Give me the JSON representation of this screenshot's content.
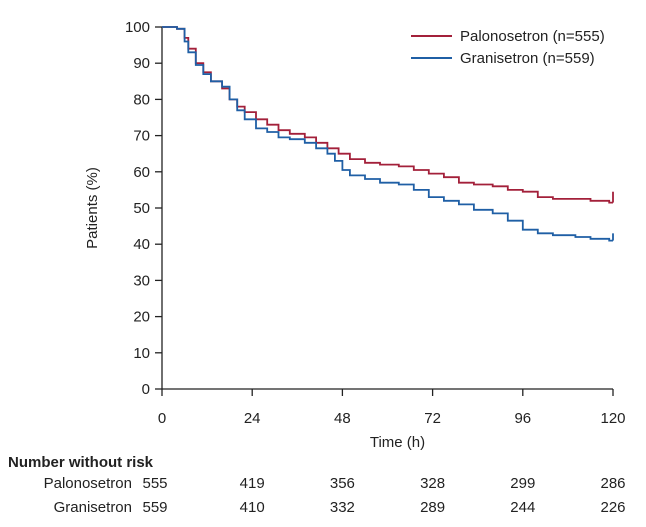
{
  "chart_data": {
    "type": "line",
    "xlabel": "Time (h)",
    "ylabel": "Patients (%)",
    "xlim": [
      0,
      120
    ],
    "ylim": [
      0,
      100
    ],
    "x_ticks": [
      0,
      24,
      48,
      72,
      96,
      120
    ],
    "y_ticks": [
      0,
      10,
      20,
      30,
      40,
      50,
      60,
      70,
      80,
      90,
      100
    ],
    "grid": false,
    "legend_position": "top-right",
    "series": [
      {
        "name": "Palonosetron (n=555)",
        "color": "#a3203a",
        "points": [
          [
            0,
            100
          ],
          [
            4,
            99.5
          ],
          [
            6,
            97
          ],
          [
            7,
            94
          ],
          [
            9,
            90
          ],
          [
            11,
            87.5
          ],
          [
            13,
            85
          ],
          [
            16,
            83
          ],
          [
            18,
            80
          ],
          [
            20,
            78
          ],
          [
            22,
            76.5
          ],
          [
            25,
            74.5
          ],
          [
            28,
            73
          ],
          [
            31,
            71.5
          ],
          [
            34,
            70.5
          ],
          [
            38,
            69.5
          ],
          [
            41,
            68
          ],
          [
            44,
            66.5
          ],
          [
            47,
            65
          ],
          [
            50,
            63.5
          ],
          [
            54,
            62.5
          ],
          [
            58,
            62
          ],
          [
            63,
            61.5
          ],
          [
            67,
            60.5
          ],
          [
            71,
            59.5
          ],
          [
            75,
            58.5
          ],
          [
            79,
            57
          ],
          [
            83,
            56.5
          ],
          [
            88,
            56
          ],
          [
            92,
            55
          ],
          [
            96,
            54.5
          ],
          [
            100,
            53
          ],
          [
            104,
            52.5
          ],
          [
            110,
            52.5
          ],
          [
            114,
            52
          ],
          [
            119,
            51.5
          ]
        ],
        "end_tick": [
          120,
          54.5
        ]
      },
      {
        "name": "Granisetron (n=559)",
        "color": "#1f5fa5",
        "points": [
          [
            0,
            100
          ],
          [
            4,
            99.5
          ],
          [
            6,
            96
          ],
          [
            7,
            93
          ],
          [
            9,
            89.5
          ],
          [
            11,
            87
          ],
          [
            13,
            85
          ],
          [
            16,
            83.5
          ],
          [
            18,
            80
          ],
          [
            20,
            77
          ],
          [
            22,
            74.5
          ],
          [
            25,
            72
          ],
          [
            28,
            71
          ],
          [
            31,
            69.5
          ],
          [
            34,
            69
          ],
          [
            38,
            68
          ],
          [
            41,
            66.5
          ],
          [
            44,
            65
          ],
          [
            46,
            63
          ],
          [
            48,
            60.5
          ],
          [
            50,
            59
          ],
          [
            54,
            58
          ],
          [
            58,
            57
          ],
          [
            63,
            56.5
          ],
          [
            67,
            55
          ],
          [
            71,
            53
          ],
          [
            75,
            52
          ],
          [
            79,
            51
          ],
          [
            83,
            49.5
          ],
          [
            88,
            48.5
          ],
          [
            92,
            46.5
          ],
          [
            96,
            44
          ],
          [
            100,
            43
          ],
          [
            104,
            42.5
          ],
          [
            110,
            42
          ],
          [
            114,
            41.5
          ],
          [
            119,
            41
          ]
        ],
        "end_tick": [
          120,
          43
        ]
      }
    ],
    "risk_table": {
      "title": "Number without risk",
      "rows": [
        {
          "label": "Palonosetron",
          "values": [
            555,
            419,
            356,
            328,
            299,
            286
          ]
        },
        {
          "label": "Granisetron",
          "values": [
            559,
            410,
            332,
            289,
            244,
            226
          ]
        }
      ]
    }
  }
}
